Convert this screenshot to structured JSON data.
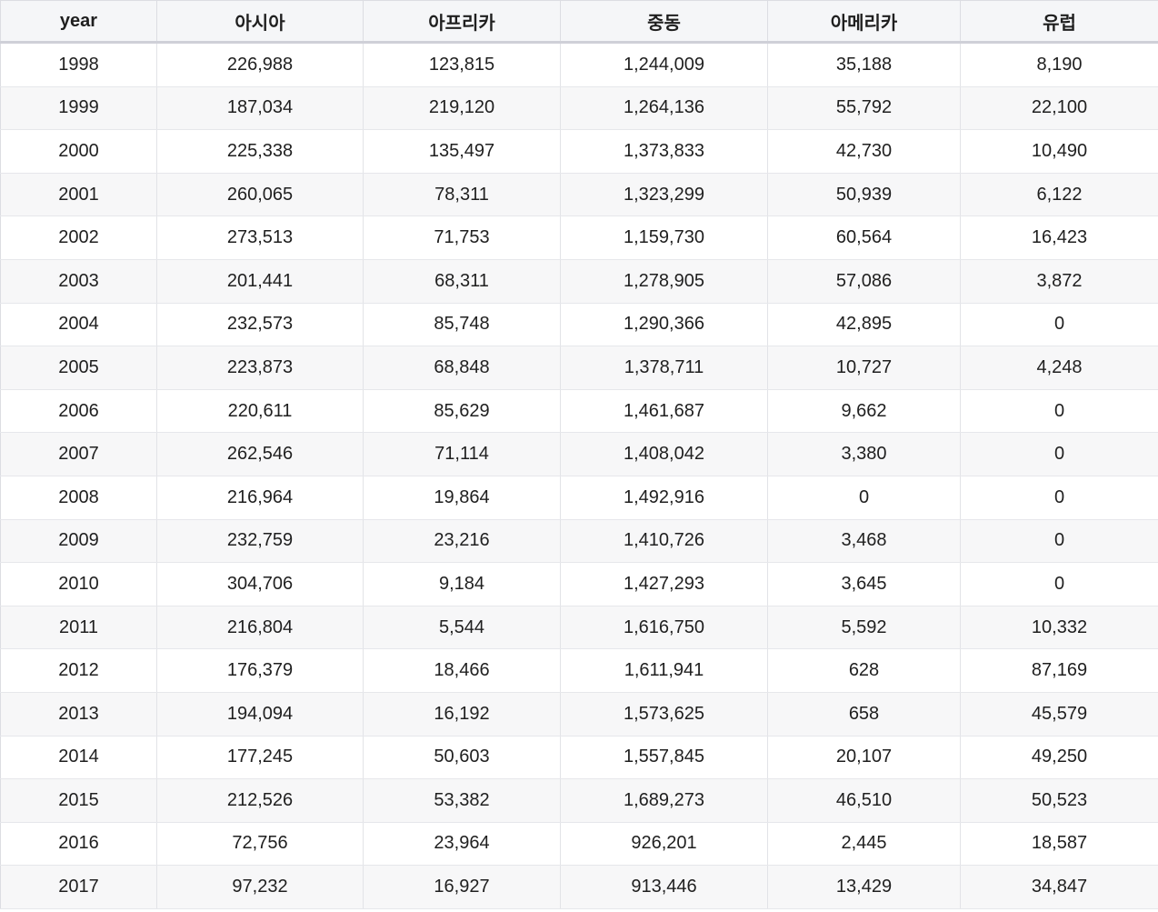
{
  "chart_data": {
    "type": "table",
    "columns": [
      "year",
      "아시아",
      "아프리카",
      "중동",
      "아메리카",
      "유럽"
    ],
    "rows": [
      [
        "1998",
        "226,988",
        "123,815",
        "1,244,009",
        "35,188",
        "8,190"
      ],
      [
        "1999",
        "187,034",
        "219,120",
        "1,264,136",
        "55,792",
        "22,100"
      ],
      [
        "2000",
        "225,338",
        "135,497",
        "1,373,833",
        "42,730",
        "10,490"
      ],
      [
        "2001",
        "260,065",
        "78,311",
        "1,323,299",
        "50,939",
        "6,122"
      ],
      [
        "2002",
        "273,513",
        "71,753",
        "1,159,730",
        "60,564",
        "16,423"
      ],
      [
        "2003",
        "201,441",
        "68,311",
        "1,278,905",
        "57,086",
        "3,872"
      ],
      [
        "2004",
        "232,573",
        "85,748",
        "1,290,366",
        "42,895",
        "0"
      ],
      [
        "2005",
        "223,873",
        "68,848",
        "1,378,711",
        "10,727",
        "4,248"
      ],
      [
        "2006",
        "220,611",
        "85,629",
        "1,461,687",
        "9,662",
        "0"
      ],
      [
        "2007",
        "262,546",
        "71,114",
        "1,408,042",
        "3,380",
        "0"
      ],
      [
        "2008",
        "216,964",
        "19,864",
        "1,492,916",
        "0",
        "0"
      ],
      [
        "2009",
        "232,759",
        "23,216",
        "1,410,726",
        "3,468",
        "0"
      ],
      [
        "2010",
        "304,706",
        "9,184",
        "1,427,293",
        "3,645",
        "0"
      ],
      [
        "2011",
        "216,804",
        "5,544",
        "1,616,750",
        "5,592",
        "10,332"
      ],
      [
        "2012",
        "176,379",
        "18,466",
        "1,611,941",
        "628",
        "87,169"
      ],
      [
        "2013",
        "194,094",
        "16,192",
        "1,573,625",
        "658",
        "45,579"
      ],
      [
        "2014",
        "177,245",
        "50,603",
        "1,557,845",
        "20,107",
        "49,250"
      ],
      [
        "2015",
        "212,526",
        "53,382",
        "1,689,273",
        "46,510",
        "50,523"
      ],
      [
        "2016",
        "72,756",
        "23,964",
        "926,201",
        "2,445",
        "18,587"
      ],
      [
        "2017",
        "97,232",
        "16,927",
        "913,446",
        "13,429",
        "34,847"
      ]
    ]
  }
}
